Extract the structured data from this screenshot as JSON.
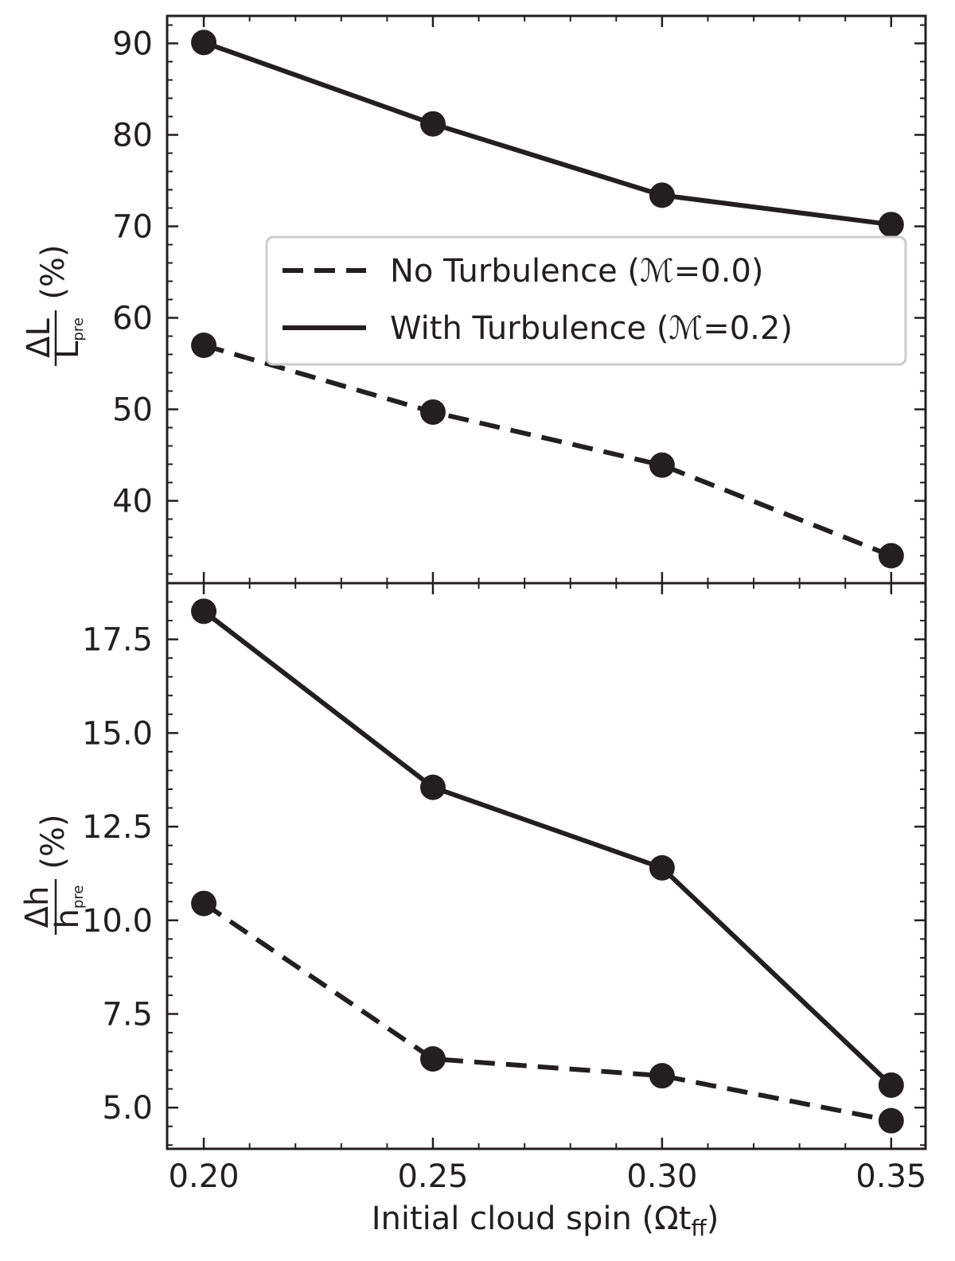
{
  "chart_data": [
    {
      "type": "line",
      "panel": "top",
      "x": [
        0.2,
        0.25,
        0.3,
        0.35
      ],
      "series": [
        {
          "name": "No Turbulence (ℳ=0.0)",
          "style": "dashed",
          "values": [
            57.0,
            49.7,
            43.9,
            34.0
          ]
        },
        {
          "name": "With Turbulence (ℳ=0.2)",
          "style": "solid",
          "values": [
            90.1,
            81.2,
            73.4,
            70.2
          ]
        }
      ],
      "ylim": [
        31.0,
        93.0
      ],
      "xlim": [
        0.192,
        0.3575
      ],
      "yticks": [
        40,
        50,
        60,
        70,
        80,
        90
      ],
      "ylabel": {
        "num": "ΔL",
        "den": "L",
        "den_sub": "pre",
        "unit": "(%)"
      },
      "legend": "center-right",
      "grid": false
    },
    {
      "type": "line",
      "panel": "bottom",
      "x": [
        0.2,
        0.25,
        0.3,
        0.35
      ],
      "series": [
        {
          "name": "No Turbulence (ℳ=0.0)",
          "style": "dashed",
          "values": [
            10.45,
            6.3,
            5.85,
            4.65
          ]
        },
        {
          "name": "With Turbulence (ℳ=0.2)",
          "style": "solid",
          "values": [
            18.25,
            13.55,
            11.4,
            5.6
          ]
        }
      ],
      "ylim": [
        3.9,
        19.0
      ],
      "xlim": [
        0.192,
        0.3575
      ],
      "yticks": [
        "5.0",
        "7.5",
        "10.0",
        "12.5",
        "15.0",
        "17.5"
      ],
      "xticks": [
        "0.20",
        "0.25",
        "0.30",
        "0.35"
      ],
      "xlabel": {
        "main": "Initial cloud spin (Ωt",
        "sub": "ff",
        "close": ")"
      },
      "ylabel": {
        "num": "Δh",
        "den": "h",
        "den_sub": "pre",
        "unit": "(%)"
      },
      "grid": false
    }
  ],
  "colors": {
    "line": "#231f20",
    "background": "#ffffff",
    "legend_border": "#cccccc"
  }
}
